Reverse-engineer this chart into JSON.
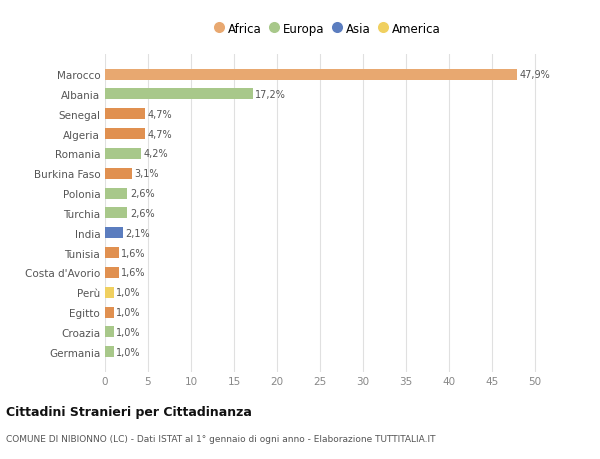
{
  "categories": [
    "Germania",
    "Croazia",
    "Egitto",
    "Perù",
    "Costa d'Avorio",
    "Tunisia",
    "India",
    "Turchia",
    "Polonia",
    "Burkina Faso",
    "Romania",
    "Algeria",
    "Senegal",
    "Albania",
    "Marocco"
  ],
  "values": [
    1.0,
    1.0,
    1.0,
    1.0,
    1.6,
    1.6,
    2.1,
    2.6,
    2.6,
    3.1,
    4.2,
    4.7,
    4.7,
    17.2,
    47.9
  ],
  "labels": [
    "1,0%",
    "1,0%",
    "1,0%",
    "1,0%",
    "1,6%",
    "1,6%",
    "2,1%",
    "2,6%",
    "2,6%",
    "3,1%",
    "4,2%",
    "4,7%",
    "4,7%",
    "17,2%",
    "47,9%"
  ],
  "colors": [
    "#a8c88a",
    "#a8c88a",
    "#e09050",
    "#f0d060",
    "#e09050",
    "#e09050",
    "#5b7dbf",
    "#a8c88a",
    "#a8c88a",
    "#e09050",
    "#a8c88a",
    "#e09050",
    "#e09050",
    "#a8c88a",
    "#e8a870"
  ],
  "legend": [
    {
      "label": "Africa",
      "color": "#e8a870"
    },
    {
      "label": "Europa",
      "color": "#a8c88a"
    },
    {
      "label": "Asia",
      "color": "#5b7dbf"
    },
    {
      "label": "America",
      "color": "#f0d060"
    }
  ],
  "title": "Cittadini Stranieri per Cittadinanza",
  "subtitle": "COMUNE DI NIBIONNO (LC) - Dati ISTAT al 1° gennaio di ogni anno - Elaborazione TUTTITALIA.IT",
  "xlim": [
    0,
    52
  ],
  "xticks": [
    0,
    5,
    10,
    15,
    20,
    25,
    30,
    35,
    40,
    45,
    50
  ],
  "background_color": "#ffffff",
  "gridcolor": "#e0e0e0",
  "bar_height": 0.55
}
